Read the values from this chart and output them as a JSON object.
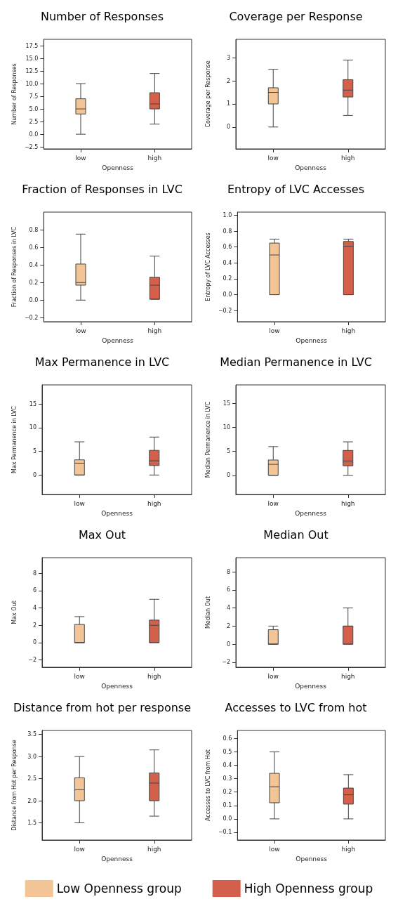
{
  "chart_data": [
    {
      "type": "box",
      "title": "Number of Responses",
      "xlabel": "Openness",
      "ylabel": "Number of Responses",
      "categories": [
        "low",
        "high"
      ],
      "colors": [
        "#f2c496",
        "#d4604b"
      ],
      "ylim": [
        -2.9,
        18.75
      ],
      "yticks": [
        {
          "value": -2.5,
          "label": "−2.5"
        },
        {
          "value": 0,
          "label": "0.0"
        },
        2.5,
        {
          "value": 5,
          "label": "5.0"
        },
        7.5,
        {
          "value": 10,
          "label": "10.0"
        },
        12.5,
        {
          "value": 15,
          "label": "15.0"
        },
        17.5
      ],
      "boxes": [
        {
          "low": 0,
          "q1": 4,
          "median": 5,
          "q3": 7,
          "high": 10
        },
        {
          "low": 2,
          "q1": 5,
          "median": 6,
          "q3": 8.2,
          "high": 12
        }
      ]
    },
    {
      "type": "box",
      "title": "Coverage per Response",
      "xlabel": "Openness",
      "ylabel": "Coverage per Response",
      "categories": [
        "low",
        "high"
      ],
      "colors": [
        "#f2c496",
        "#d4604b"
      ],
      "ylim": [
        -0.95,
        3.8
      ],
      "yticks": [
        0,
        1,
        2,
        3
      ],
      "boxes": [
        {
          "low": 0,
          "q1": 1,
          "median": 1.5,
          "q3": 1.7,
          "high": 2.5
        },
        {
          "low": 0.5,
          "q1": 1.3,
          "median": 1.6,
          "q3": 2.05,
          "high": 2.9
        }
      ]
    },
    {
      "type": "box",
      "title": "Fraction of Responses in LVC",
      "xlabel": "Openness",
      "ylabel": "Fraction of Responses in LVC",
      "categories": [
        "low",
        "high"
      ],
      "colors": [
        "#f2c496",
        "#d4604b"
      ],
      "ylim": [
        -0.245,
        1.0
      ],
      "yticks": [
        {
          "value": -0.2,
          "label": "−0.2"
        },
        {
          "value": 0,
          "label": "0.0"
        },
        0.2,
        0.4,
        0.6,
        0.8
      ],
      "boxes": [
        {
          "low": 0,
          "q1": 0.17,
          "median": 0.2,
          "q3": 0.41,
          "high": 0.75
        },
        {
          "low": 0.01,
          "q1": 0.01,
          "median": 0.17,
          "q3": 0.26,
          "high": 0.5
        }
      ]
    },
    {
      "type": "box",
      "title": "Entropy of LVC Accesses",
      "xlabel": "Openness",
      "ylabel": "Entropy of LVC Accesses",
      "categories": [
        "low",
        "high"
      ],
      "colors": [
        "#f2c496",
        "#d4604b"
      ],
      "ylim": [
        -0.34,
        1.04
      ],
      "yticks": [
        {
          "value": -0.2,
          "label": "−0.2"
        },
        {
          "value": 0,
          "label": "0.0"
        },
        0.2,
        0.4,
        0.6,
        0.8,
        {
          "value": 1,
          "label": "1.0"
        }
      ],
      "boxes": [
        {
          "low": 0,
          "q1": 0,
          "median": 0.5,
          "q3": 0.65,
          "high": 0.7
        },
        {
          "low": 0,
          "q1": 0,
          "median": 0.61,
          "q3": 0.67,
          "high": 0.7
        }
      ]
    },
    {
      "type": "box",
      "title": "Max Permanence in LVC",
      "xlabel": "Openness",
      "ylabel": "Max Permanence in LVC",
      "categories": [
        "low",
        "high"
      ],
      "colors": [
        "#f2c496",
        "#d4604b"
      ],
      "ylim": [
        -4.1,
        19
      ],
      "yticks": [
        0,
        5,
        10,
        15
      ],
      "boxes": [
        {
          "low": 0,
          "q1": 0,
          "median": 2.5,
          "q3": 3.2,
          "high": 7
        },
        {
          "low": 0,
          "q1": 2,
          "median": 3,
          "q3": 5.2,
          "high": 8
        }
      ]
    },
    {
      "type": "box",
      "title": "Median Permanence in LVC",
      "xlabel": "Openness",
      "ylabel": "Median Permanence in LVC",
      "categories": [
        "low",
        "high"
      ],
      "colors": [
        "#f2c496",
        "#d4604b"
      ],
      "ylim": [
        -4,
        18.9
      ],
      "yticks": [
        0,
        5,
        10,
        15
      ],
      "boxes": [
        {
          "low": 0,
          "q1": 0,
          "median": 2.3,
          "q3": 3.2,
          "high": 6
        },
        {
          "low": 0,
          "q1": 2,
          "median": 3,
          "q3": 5.2,
          "high": 7
        }
      ]
    },
    {
      "type": "box",
      "title": "Max Out",
      "xlabel": "Openness",
      "ylabel": "Max Out",
      "categories": [
        "low",
        "high"
      ],
      "colors": [
        "#f2c496",
        "#d4604b"
      ],
      "ylim": [
        -2.84,
        9.8
      ],
      "yticks": [
        {
          "value": -2,
          "label": "−2"
        },
        0,
        2,
        4,
        6,
        8
      ],
      "boxes": [
        {
          "low": 0,
          "q1": 0,
          "median": 0,
          "q3": 2.1,
          "high": 3
        },
        {
          "low": 0,
          "q1": 0,
          "median": 2,
          "q3": 2.6,
          "high": 5
        }
      ]
    },
    {
      "type": "box",
      "title": "Median Out",
      "xlabel": "Openness",
      "ylabel": "Median Out",
      "categories": [
        "low",
        "high"
      ],
      "colors": [
        "#f2c496",
        "#d4604b"
      ],
      "ylim": [
        -2.55,
        9.56
      ],
      "yticks": [
        {
          "value": -2,
          "label": "−2"
        },
        0,
        2,
        4,
        6,
        8
      ],
      "boxes": [
        {
          "low": 0,
          "q1": 0,
          "median": 0,
          "q3": 1.6,
          "high": 2
        },
        {
          "low": 0,
          "q1": 0,
          "median": 2,
          "q3": 2,
          "high": 4
        }
      ]
    },
    {
      "type": "box",
      "title": "Distance from hot per response",
      "xlabel": "Openness",
      "ylabel": "Distance from Hot per Response",
      "categories": [
        "low",
        "high"
      ],
      "colors": [
        "#f2c496",
        "#d4604b"
      ],
      "ylim": [
        1.11,
        3.59
      ],
      "yticks": [
        1.5,
        {
          "value": 2,
          "label": "2.0"
        },
        2.5,
        {
          "value": 3,
          "label": "3.0"
        },
        3.5
      ],
      "boxes": [
        {
          "low": 1.5,
          "q1": 2,
          "median": 2.25,
          "q3": 2.52,
          "high": 3
        },
        {
          "low": 1.65,
          "q1": 2,
          "median": 2.4,
          "q3": 2.63,
          "high": 3.15
        }
      ]
    },
    {
      "type": "box",
      "title": "Accesses to LVC from hot",
      "xlabel": "Openness",
      "ylabel": "Accesses to LVC from Hot",
      "categories": [
        "low",
        "high"
      ],
      "colors": [
        "#f2c496",
        "#d4604b"
      ],
      "ylim": [
        -0.158,
        0.66
      ],
      "yticks": [
        {
          "value": -0.1,
          "label": "−0.1"
        },
        {
          "value": 0,
          "label": "0.0"
        },
        0.1,
        0.2,
        0.3,
        0.4,
        0.5,
        0.6
      ],
      "boxes": [
        {
          "low": 0,
          "q1": 0.12,
          "median": 0.24,
          "q3": 0.34,
          "high": 0.5
        },
        {
          "low": 0,
          "q1": 0.11,
          "median": 0.18,
          "q3": 0.23,
          "high": 0.33
        }
      ]
    },
    {
      "type": "other",
      "legend": "bottom",
      "series": [
        {
          "name": "Low Openness group",
          "color": "#f2c496"
        },
        {
          "name": "High Openness group",
          "color": "#d4604b"
        }
      ]
    }
  ]
}
